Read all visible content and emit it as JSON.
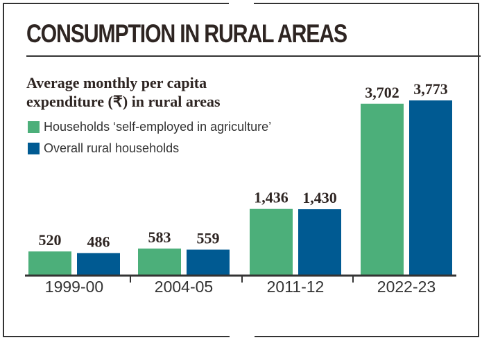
{
  "title": "CONSUMPTION IN RURAL AREAS",
  "chart_data": {
    "type": "bar",
    "title": "Average monthly per capita expenditure (₹) in rural areas",
    "categories": [
      "1999-00",
      "2004-05",
      "2011-12",
      "2022-23"
    ],
    "series": [
      {
        "name": "Households ‘self-employed in agriculture’",
        "color": "#4caf7a",
        "values": [
          520,
          583,
          1436,
          3702
        ],
        "labels": [
          "520",
          "583",
          "1,436",
          "3,702"
        ]
      },
      {
        "name": "Overall rural households",
        "color": "#005a92",
        "values": [
          486,
          559,
          1430,
          3773
        ],
        "labels": [
          "486",
          "559",
          "1,430",
          "3,773"
        ]
      }
    ],
    "xlabel": "",
    "ylabel": "",
    "ylim": [
      0,
      3773
    ],
    "grid": false,
    "legend": "top-left"
  }
}
